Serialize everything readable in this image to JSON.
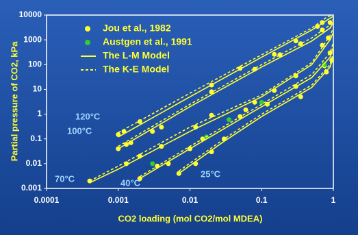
{
  "chart_data": {
    "type": "scatter",
    "x_label": "CO2 loading (mol CO2/mol MDEA)",
    "y_label": "Partial pressure of CO2, kPa",
    "log_x": true,
    "log_y": true,
    "xlim": [
      0.0001,
      1
    ],
    "ylim": [
      0.001,
      10000
    ],
    "xticks": [
      0.0001,
      0.001,
      0.01,
      0.1,
      1
    ],
    "yticks": [
      0.001,
      0.01,
      0.1,
      1,
      10,
      100,
      1000,
      10000
    ],
    "legend": "top-left",
    "annotations": [
      "120°C",
      "100°C",
      "70°C",
      "40°C",
      "25°C"
    ],
    "series": [
      {
        "name": "Jou et al., 1982",
        "color": "#ffff33",
        "style": "points",
        "x": [
          0.001,
          0.0012,
          0.002,
          0.02,
          0.05,
          0.15,
          0.3,
          0.6,
          0.7,
          0.001,
          0.0013,
          0.0015,
          0.003,
          0.004,
          0.02,
          0.08,
          0.18,
          0.35,
          0.7,
          0.9,
          0.0004,
          0.0013,
          0.002,
          0.004,
          0.012,
          0.02,
          0.06,
          0.08,
          0.15,
          0.3,
          0.7,
          0.85,
          0.002,
          0.0035,
          0.005,
          0.01,
          0.015,
          0.05,
          0.12,
          0.3,
          0.35,
          0.75,
          0.9,
          0.007,
          0.012,
          0.02,
          0.03,
          0.8,
          0.95
        ],
        "values": [
          0.15,
          0.2,
          0.5,
          15,
          70,
          260,
          900,
          3500,
          5000,
          0.04,
          0.06,
          0.07,
          0.2,
          0.3,
          8,
          65,
          250,
          700,
          2500,
          5000,
          0.002,
          0.01,
          0.02,
          0.05,
          0.3,
          0.9,
          1.5,
          3,
          9,
          35,
          600,
          1200,
          0.0025,
          0.008,
          0.01,
          0.04,
          0.1,
          0.8,
          2.5,
          13,
          5,
          90,
          300,
          0.004,
          0.01,
          0.03,
          0.1,
          50,
          150
        ]
      },
      {
        "name": "Austgen et al., 1991",
        "color": "#33cc33",
        "style": "points",
        "x": [
          0.003,
          0.017,
          0.035,
          0.1,
          0.75
        ],
        "values": [
          0.01,
          0.12,
          0.6,
          3,
          100
        ]
      },
      {
        "name": "The L-M Model",
        "color": "#ffff33",
        "style": "solid",
        "curves": [
          {
            "x": [
              0.001,
              0.01,
              0.1,
              0.5,
              0.8,
              1
            ],
            "values": [
              0.12,
              5,
              200,
              2500,
              6000,
              9000
            ]
          },
          {
            "x": [
              0.001,
              0.01,
              0.1,
              0.5,
              0.9,
              1
            ],
            "values": [
              0.04,
              2,
              80,
              900,
              3000,
              5000
            ]
          },
          {
            "x": [
              0.0004,
              0.001,
              0.01,
              0.1,
              0.5,
              0.9,
              1
            ],
            "values": [
              0.0017,
              0.006,
              0.2,
              5,
              100,
              1000,
              2000
            ]
          },
          {
            "x": [
              0.002,
              0.01,
              0.1,
              0.5,
              0.9,
              1
            ],
            "values": [
              0.0025,
              0.04,
              2,
              30,
              200,
              500
            ]
          },
          {
            "x": [
              0.007,
              0.03,
              0.1,
              0.5,
              0.9,
              1
            ],
            "values": [
              0.004,
              0.08,
              0.8,
              12,
              80,
              200
            ]
          }
        ]
      },
      {
        "name": "The K-E Model",
        "color": "#ffff33",
        "style": "dashed",
        "curves": [
          {
            "x": [
              0.001,
              0.01,
              0.1,
              0.5,
              0.8,
              0.95
            ],
            "values": [
              0.18,
              7,
              250,
              3000,
              8000,
              10000
            ]
          },
          {
            "x": [
              0.001,
              0.01,
              0.1,
              0.5,
              0.9,
              1
            ],
            "values": [
              0.05,
              2.5,
              100,
              1200,
              4000,
              7000
            ]
          },
          {
            "x": [
              0.0004,
              0.001,
              0.01,
              0.1,
              0.5,
              0.9,
              1
            ],
            "values": [
              0.002,
              0.008,
              0.3,
              6,
              120,
              1500,
              3000
            ]
          },
          {
            "x": [
              0.002,
              0.01,
              0.1,
              0.5,
              0.9,
              1
            ],
            "values": [
              0.003,
              0.05,
              2.5,
              40,
              300,
              800
            ]
          },
          {
            "x": [
              0.007,
              0.03,
              0.1,
              0.5,
              0.9,
              1
            ],
            "values": [
              0.005,
              0.1,
              1,
              15,
              100,
              300
            ]
          }
        ]
      }
    ]
  }
}
